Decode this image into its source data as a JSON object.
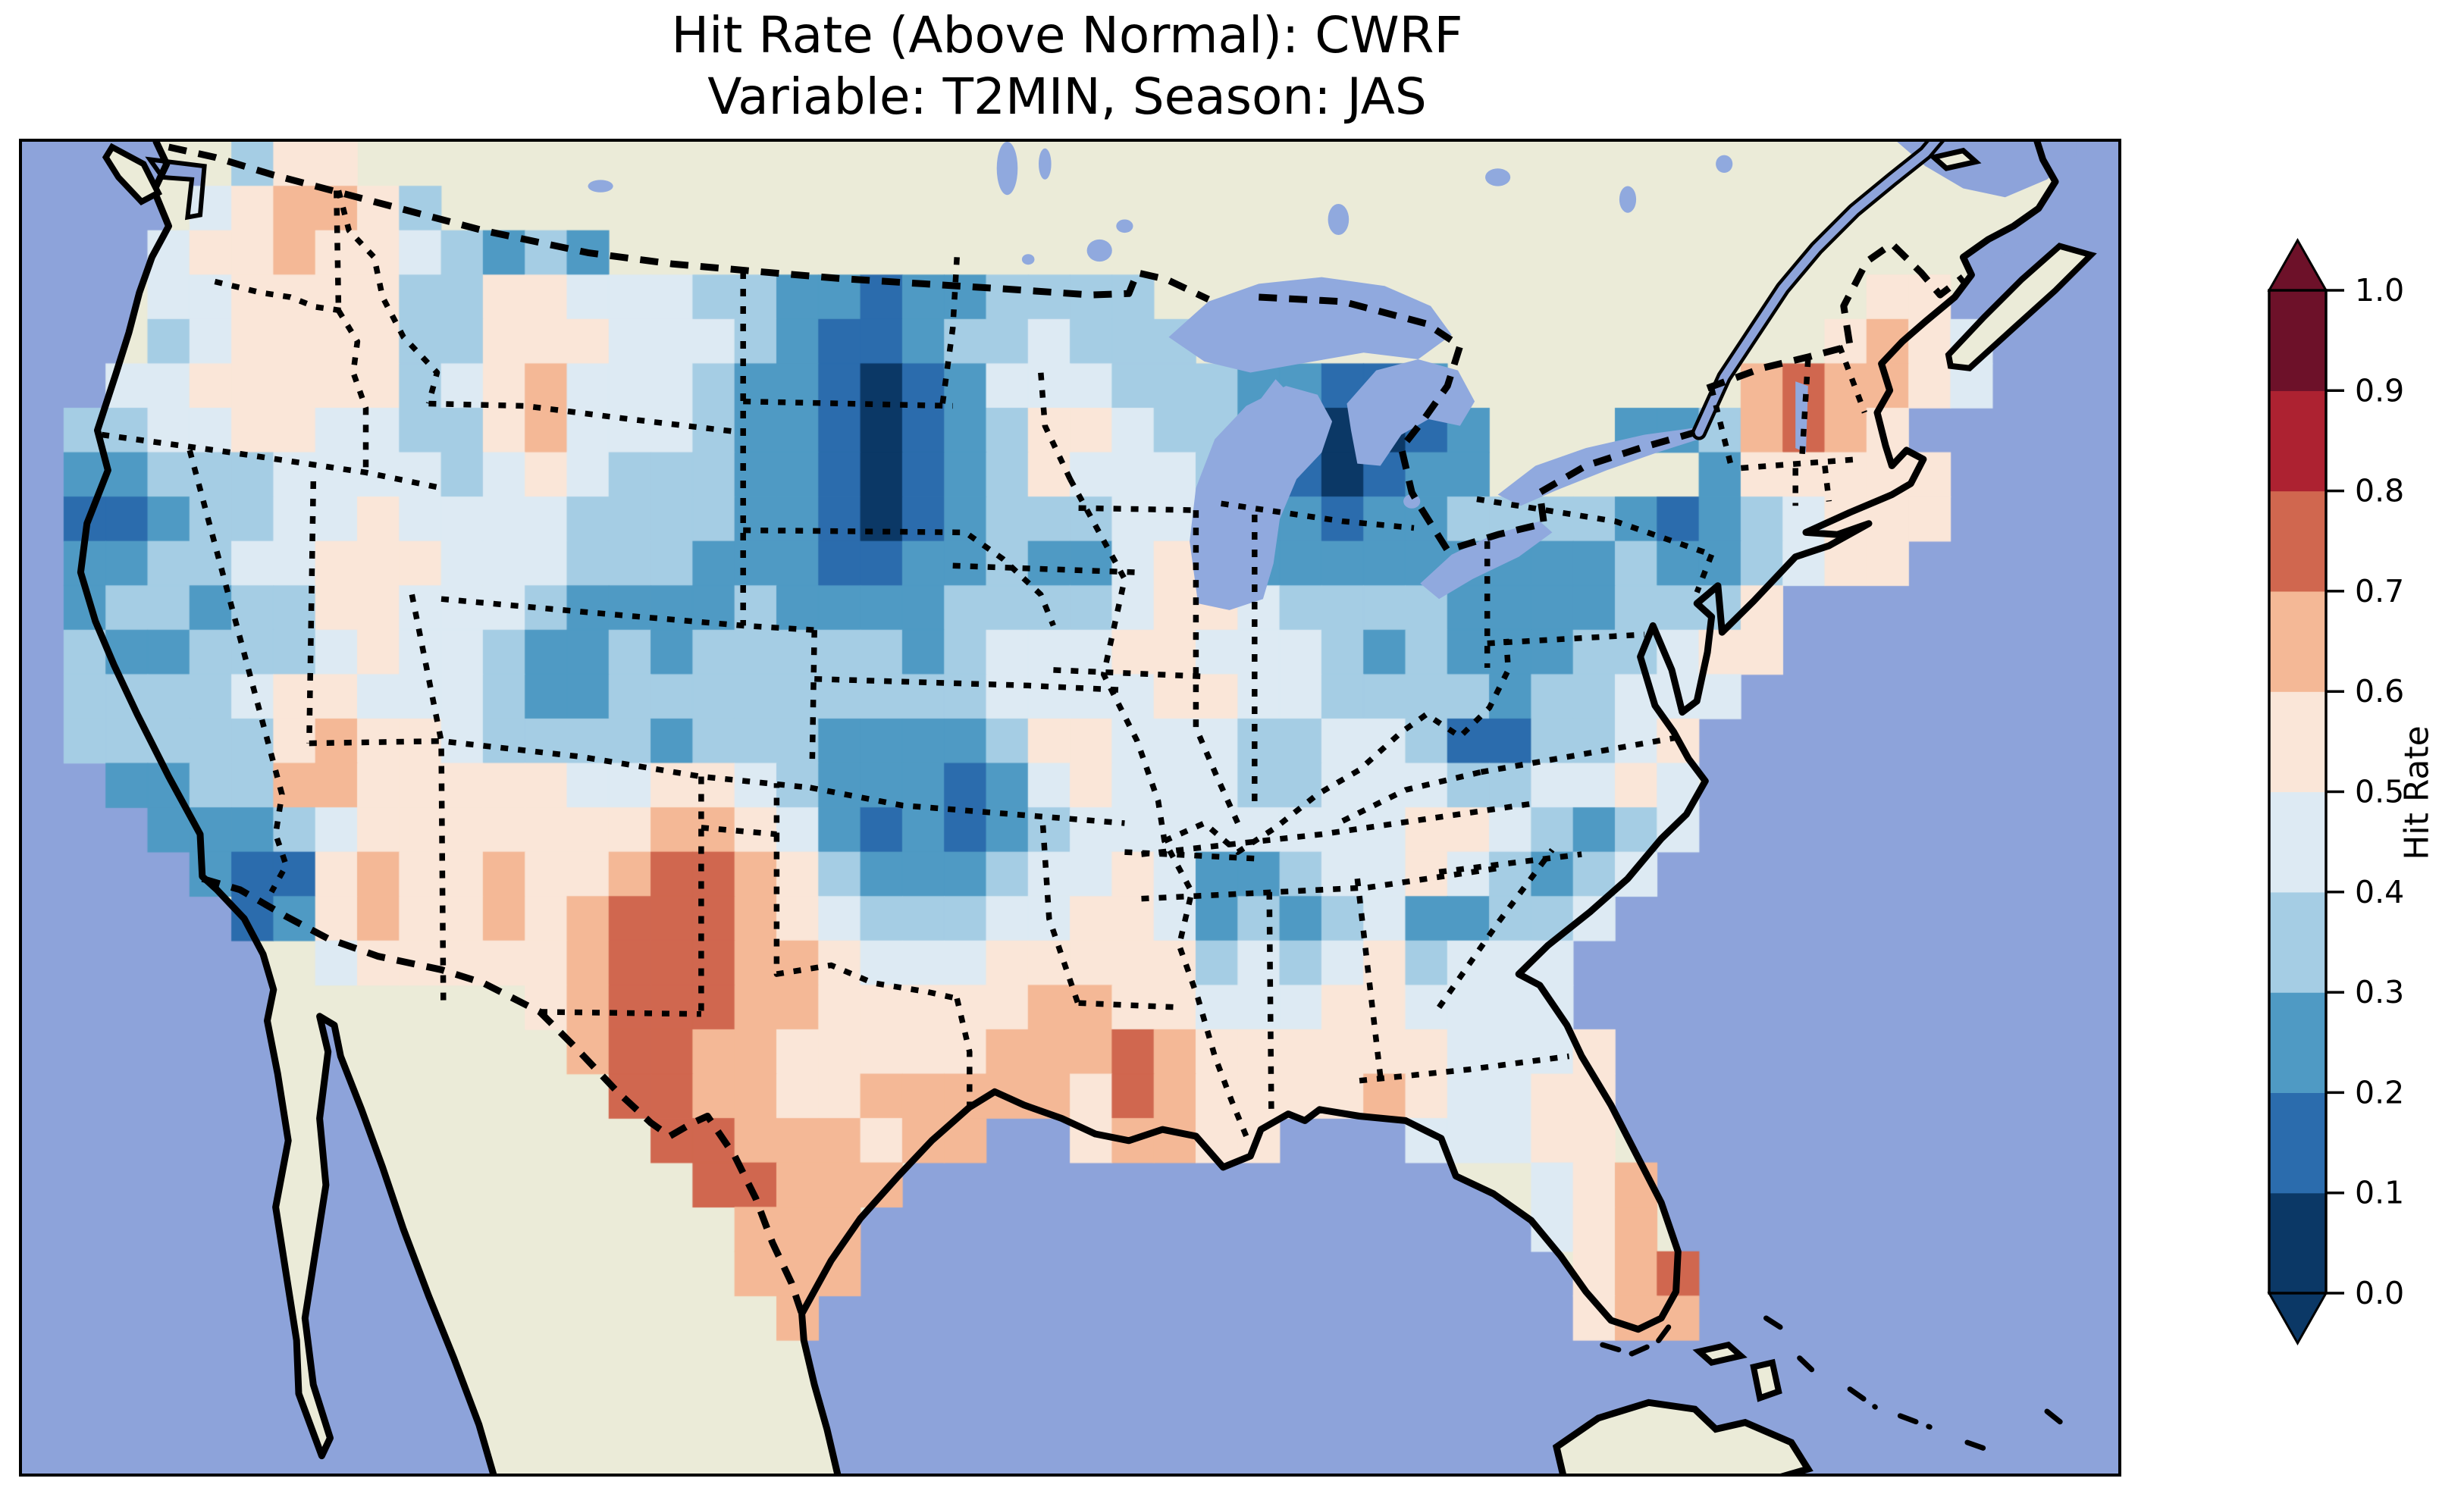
{
  "title": {
    "line1": "Hit Rate (Above Normal): CWRF",
    "line2": "Variable: T2MIN, Season: JAS"
  },
  "colorbar": {
    "label": "Hit Rate",
    "tick_labels": [
      "1.0",
      "0.9",
      "0.8",
      "0.7",
      "0.6",
      "0.5",
      "0.4",
      "0.3",
      "0.2",
      "0.1",
      "0.0"
    ],
    "bin_colors_low_to_high": [
      "#0b3866",
      "#2b6cad",
      "#4f9ac4",
      "#a5cde4",
      "#ddeaf3",
      "#fae6d8",
      "#f4b896",
      "#d0674f",
      "#ad2231",
      "#6d1129"
    ],
    "arrow_under_color": "#0b3866",
    "arrow_over_color": "#6d1129"
  },
  "map_colors": {
    "ocean": "#8da3da",
    "land": "#ebebd8",
    "lake": "#90a9de",
    "coastline": "#000000",
    "borders": "#000000"
  },
  "chart_data": {
    "type": "heatmap",
    "title": "Hit Rate (Above Normal): CWRF — Variable: T2MIN, Season: JAS",
    "metric": "Hit Rate",
    "model": "CWRF",
    "variable": "T2MIN",
    "season": "JAS",
    "domain": "Continental United States (Lambert conformal map)",
    "colorbar_range": [
      0.0,
      1.0
    ],
    "colorbar_step": 0.1,
    "legend_position": "right",
    "value_bins": {
      "0": "0.0-0.1",
      "1": "0.1-0.2",
      "2": "0.2-0.3",
      "3": "0.3-0.4",
      "4": "0.4-0.5",
      "5": "0.5-0.6",
      "6": "0.6-0.7",
      "7": "0.7-0.8",
      "8": "0.8-0.9",
      "9": "0.9-1.0",
      ".": "no data (outside CONUS)"
    },
    "grid_cols": 50,
    "grid_rows": 30,
    "grid": [
      ".....355",
      "....456653",
      "...45565543232",
      "...445555335544433221223333.................55",
      "...3455553355544432112334333...............5654...",
      "..44555553456444322101244433322112.......676654...",
      ".3344554433564443221012355433220012...2236765.....",
      ".2233344443454333221012354443210122.....255555....",
      ".112334454444333322101233344322122333321234555....",
      ".22334455544433322211223224542222222223223455.....",
      ".23323355444322223222233334554333322223335........",
      ".32233345443223233333234445544432322233455........",
      ".3333455444322333333333444455443333233444.........",
      ".333335655433332333222235544433443113345..........",
      "..22336655555445543222124544433444334454..........",
      "...2223455555556654212123444444445543234..........",
      "....21156556556776532223445422344543234...........",
      ".....125655656777654333445542323422334............",
      ".......455555677766544455555343453444.............",
      "............5677766555556655444554444.............",
      ".............6776655555666765555554445............",
      "..............776655666665765555654455............",
      "...............77666566..56655...44455............",
      "................77666...............456...........",
      ".................666................456...........",
      ".................666.................567..........",
      "..................6..................566..........",
      "..................................................",
      "..................................................",
      ".................................................."
    ],
    "notable_features": {
      "lowest_hit_rate": [
        "North & South Dakota into NE Wyoming / N Nebraska: large 0.0-0.2 core",
        "NE Wisconsin / N Lake Michigan / N Michigan: 0.0-0.1 spot",
        "Northern California coast: 0.1-0.2",
        "Southern California / Imperial Valley: 0.1-0.2 spot",
        "Kansas-Oklahoma corridor: 0.1-0.3 tongue",
        "Ohio / West Virginia / upstate New York: 0.2-0.3"
      ],
      "highest_hit_rate": [
        "Eastern New Mexico - West Texas: 0.7-0.8 core",
        "Vermont / New Hampshire: 0.7-0.8 spots",
        "South and central Texas, Texas Gulf coast: 0.6-0.8",
        "NE Louisiana: 0.7-0.8 spot",
        "SE Florida (Miami area): 0.6-0.8",
        "E Washington, Lake Mead area, central Arizona: 0.6-0.7 spots"
      ],
      "background": "Most of the Midwest, Southeast and interior West is pale (0.4-0.6)"
    }
  }
}
